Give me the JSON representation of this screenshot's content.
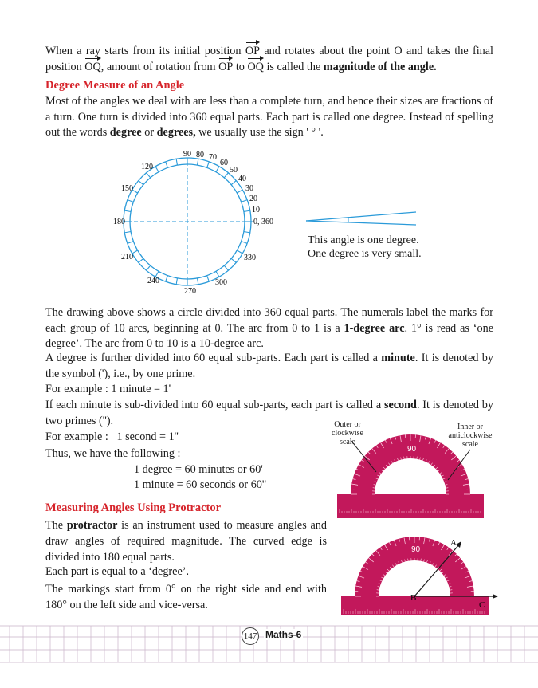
{
  "intro": {
    "t1": "When a ray starts from its initial position ",
    "op": "OP",
    "t2": " and rotates about the point O and takes the final position ",
    "oq": "OQ",
    "t3": ", amount of rotation from ",
    "op2": "OP",
    "t4": " to ",
    "oq2": "OQ",
    "t5": " is called the ",
    "bold": "magnitude of the angle."
  },
  "degree_section": {
    "heading": "Degree Measure of an Angle",
    "p1": "Most of the angles we deal with are less than a complete turn, and hence their sizes are fractions of a turn. One turn is divided into 360 equal parts. Each part is called one degree. Instead of spelling out the words ",
    "p1_b1": "degree",
    "p1_mid": " or ",
    "p1_b2": "degrees,",
    "p1_end": " we usually use the sign ' ° '."
  },
  "circle_labels": {
    "l90": "90",
    "l80": "80",
    "l70": "70",
    "l60": "60",
    "l50": "50",
    "l40": "40",
    "l30": "30",
    "l20": "20",
    "l10": "10",
    "l0": "0, 360",
    "l120": "120",
    "l150": "150",
    "l180": "180",
    "l210": "210",
    "l240": "240",
    "l270": "270",
    "l300": "300",
    "l330": "330"
  },
  "one_degree": {
    "line1": "This angle is one degree.",
    "line2": "One degree is very small."
  },
  "drawing_para": {
    "t1": "The drawing above shows a circle divided into 360 equal parts. The numerals label the marks for each group of 10 arcs, beginning at 0. The arc from 0 to 1 is a ",
    "b1": "1-degree arc",
    "t2": ". 1° is read as ‘one degree’. The arc from 0 to 10 is a 10",
    "b2": "-",
    "t3": "degree arc."
  },
  "minute_para": {
    "t1": "A degree is further divided into 60 equal sub-parts. Each part is called a ",
    "b1": "minute",
    "t2": ". It is denoted by the symbol ('), i.e., by one prime."
  },
  "example1": "For example : 1 minute = 1'",
  "second_para": {
    "t1": "If each minute is sub-divided into 60 equal sub-parts, each part is called a ",
    "b1": "second",
    "t2": ". It is denoted by two primes ('')."
  },
  "example2": "For example :   1 second = 1''",
  "thus": "Thus, we have the following :",
  "eq1": "1 degree = 60 minutes or 60'",
  "eq2": "1 minute = 60 seconds or 60''",
  "protractor_section": {
    "heading": "Measuring Angles Using Protractor",
    "p1_pre": "The ",
    "p1_b": "protractor",
    "p1_post": " is an instrument used to measure angles and draw angles of required magnitude. The curved edge is divided into 180 equal parts.",
    "p2": "Each part is equal to a ‘degree’.",
    "p3": "The markings start from 0° on the right side and end with 180° on the left side and vice-versa."
  },
  "protractor_labels": {
    "outer": "Outer or clockwise scale",
    "inner": "Inner or anticlockwise scale",
    "ninety": "90",
    "ninety2": "90",
    "A": "A",
    "B": "B",
    "C": "C"
  },
  "footer": {
    "page": "147",
    "book": "Maths-6"
  },
  "colors": {
    "heading_red": "#d6232a",
    "circle_blue": "#2a9ad9",
    "protractor_pink": "#c2185b"
  }
}
